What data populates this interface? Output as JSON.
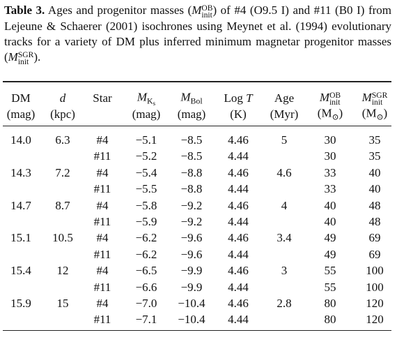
{
  "caption": [
    {
      "text": "Table 3.",
      "style": "bold"
    },
    {
      "text": " Ages and progenitor masses (",
      "style": "normal"
    },
    {
      "base": "M",
      "sup": "OB",
      "sub": "init"
    },
    {
      "text": ") of #4 (O9.5 I) and #11 (B0 I) from Lejeune & Schaerer (2001) isochrones using Meynet et al. (1994) evolutionary tracks for a variety of DM plus inferred minimum magnetar progenitor masses (",
      "style": "normal"
    },
    {
      "base": "M",
      "sup": "SGR",
      "sub": "init"
    },
    {
      "text": ").",
      "style": "normal"
    }
  ],
  "table": {
    "columns": [
      {
        "name": [
          {
            "text": "DM",
            "style": "normal"
          }
        ],
        "unit": [
          {
            "text": "(mag)",
            "style": "normal"
          }
        ]
      },
      {
        "name": [
          {
            "text": "d",
            "style": "italic"
          }
        ],
        "unit": [
          {
            "text": "(kpc)",
            "style": "normal"
          }
        ]
      },
      {
        "name": [
          {
            "text": "Star",
            "style": "normal"
          }
        ],
        "unit": null
      },
      {
        "name": [
          {
            "base": "M",
            "sub": "K",
            "sub2": "s"
          }
        ],
        "unit": [
          {
            "text": "(mag)",
            "style": "normal"
          }
        ]
      },
      {
        "name": [
          {
            "base": "M",
            "sub": "Bol"
          }
        ],
        "unit": [
          {
            "text": "(mag)",
            "style": "normal"
          }
        ]
      },
      {
        "name": [
          {
            "text": "Log ",
            "style": "normal"
          },
          {
            "text": "T",
            "style": "italic"
          }
        ],
        "unit": [
          {
            "text": "(K)",
            "style": "normal"
          }
        ]
      },
      {
        "name": [
          {
            "text": "Age",
            "style": "normal"
          }
        ],
        "unit": [
          {
            "text": "(Myr)",
            "style": "normal"
          }
        ]
      },
      {
        "name": [
          {
            "base": "M",
            "sup": "OB",
            "sub": "init"
          }
        ],
        "unit": [
          {
            "text": "(M",
            "style": "normal"
          },
          {
            "text": "⊙",
            "style": "sub"
          },
          {
            "text": ")",
            "style": "normal"
          }
        ]
      },
      {
        "name": [
          {
            "base": "M",
            "sup": "SGR",
            "sub": "init"
          }
        ],
        "unit": [
          {
            "text": "(M",
            "style": "normal"
          },
          {
            "text": "⊙",
            "style": "sub"
          },
          {
            "text": ")",
            "style": "normal"
          }
        ]
      }
    ],
    "rows": [
      [
        "14.0",
        "6.3",
        "#4",
        "−5.1",
        "−8.5",
        "4.46",
        "5",
        "30",
        "35"
      ],
      [
        null,
        null,
        "#11",
        "−5.2",
        "−8.5",
        "4.44",
        null,
        "30",
        "35"
      ],
      [
        "14.3",
        "7.2",
        "#4",
        "−5.4",
        "−8.8",
        "4.46",
        "4.6",
        "33",
        "40"
      ],
      [
        null,
        null,
        "#11",
        "−5.5",
        "−8.8",
        "4.44",
        null,
        "33",
        "40"
      ],
      [
        "14.7",
        "8.7",
        "#4",
        "−5.8",
        "−9.2",
        "4.46",
        "4",
        "40",
        "48"
      ],
      [
        null,
        null,
        "#11",
        "−5.9",
        "−9.2",
        "4.44",
        null,
        "40",
        "48"
      ],
      [
        "15.1",
        "10.5",
        "#4",
        "−6.2",
        "−9.6",
        "4.46",
        "3.4",
        "49",
        "69"
      ],
      [
        null,
        null,
        "#11",
        "−6.2",
        "−9.6",
        "4.44",
        null,
        "49",
        "69"
      ],
      [
        "15.4",
        "12",
        "#4",
        "−6.5",
        "−9.9",
        "4.46",
        "3",
        "55",
        "100"
      ],
      [
        null,
        null,
        "#11",
        "−6.6",
        "−9.9",
        "4.44",
        null,
        "55",
        "100"
      ],
      [
        "15.9",
        "15",
        "#4",
        "−7.0",
        "−10.4",
        "4.46",
        "2.8",
        "80",
        "120"
      ],
      [
        null,
        null,
        "#11",
        "−7.1",
        "−10.4",
        "4.44",
        null,
        "80",
        "120"
      ]
    ]
  }
}
